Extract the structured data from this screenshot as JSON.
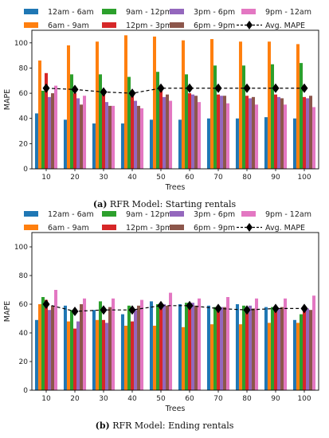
{
  "captions": [
    {
      "tag": "(a)",
      "text": "RFR Model: Starting rentals"
    },
    {
      "tag": "(b)",
      "text": "RFR Model: Ending rentals"
    }
  ],
  "legend_order": [
    "12am - 6am",
    "9am - 12pm",
    "3pm - 6pm",
    "9pm - 12am",
    "6am - 9am",
    "12pm - 3pm",
    "6pm - 9pm",
    "Avg. MAPE"
  ],
  "chart_data": [
    {
      "type": "bar",
      "title": "",
      "xlabel": "Trees",
      "ylabel": "MAPE",
      "categories": [
        "10",
        "20",
        "30",
        "40",
        "50",
        "60",
        "70",
        "80",
        "90",
        "100"
      ],
      "ylim": [
        0,
        110
      ],
      "yticks": [
        0,
        20,
        40,
        60,
        80,
        100
      ],
      "series": [
        {
          "name": "12am - 6am",
          "color": "#1f77b4",
          "values": [
            44,
            39,
            36,
            36,
            39,
            39,
            40,
            40,
            41,
            40
          ]
        },
        {
          "name": "6am - 9am",
          "color": "#ff7f0e",
          "values": [
            86,
            98,
            101,
            106,
            105,
            102,
            103,
            101,
            101,
            99
          ]
        },
        {
          "name": "9am - 12pm",
          "color": "#2ca02c",
          "values": [
            62,
            75,
            75,
            73,
            77,
            75,
            82,
            82,
            83,
            84
          ]
        },
        {
          "name": "12pm - 3pm",
          "color": "#d62728",
          "values": [
            76,
            60,
            62,
            58,
            63,
            60,
            59,
            58,
            59,
            57
          ]
        },
        {
          "name": "3pm - 6pm",
          "color": "#9467bd",
          "values": [
            57,
            56,
            53,
            54,
            57,
            59,
            58,
            56,
            57,
            56
          ]
        },
        {
          "name": "6pm - 9pm",
          "color": "#8c564b",
          "values": [
            60,
            51,
            50,
            50,
            59,
            58,
            58,
            57,
            56,
            58
          ]
        },
        {
          "name": "9pm - 12am",
          "color": "#e377c2",
          "values": [
            66,
            58,
            50,
            48,
            54,
            53,
            52,
            51,
            51,
            49
          ]
        }
      ],
      "line": {
        "name": "Avg. MAPE",
        "color": "#000000",
        "values": [
          64,
          63,
          61,
          60,
          64,
          64,
          64,
          64,
          64,
          64
        ]
      },
      "legend": "top",
      "grid": false
    },
    {
      "type": "bar",
      "title": "",
      "xlabel": "Trees",
      "ylabel": "MAPE",
      "categories": [
        "10",
        "20",
        "30",
        "40",
        "50",
        "60",
        "70",
        "80",
        "90",
        "100"
      ],
      "ylim": [
        0,
        110
      ],
      "yticks": [
        0,
        20,
        40,
        60,
        80,
        100
      ],
      "series": [
        {
          "name": "12am - 6am",
          "color": "#1f77b4",
          "values": [
            49,
            59,
            56,
            53,
            62,
            60,
            59,
            60,
            58,
            49
          ]
        },
        {
          "name": "6am - 9am",
          "color": "#ff7f0e",
          "values": [
            60,
            48,
            49,
            45,
            45,
            44,
            46,
            46,
            47,
            47
          ]
        },
        {
          "name": "9am - 12pm",
          "color": "#2ca02c",
          "values": [
            65,
            56,
            62,
            59,
            60,
            61,
            58,
            59,
            58,
            53
          ]
        },
        {
          "name": "12pm - 3pm",
          "color": "#d62728",
          "values": [
            63,
            43,
            49,
            48,
            58,
            58,
            57,
            55,
            56,
            57
          ]
        },
        {
          "name": "3pm - 6pm",
          "color": "#9467bd",
          "values": [
            56,
            48,
            47,
            56,
            60,
            61,
            58,
            59,
            57,
            57
          ]
        },
        {
          "name": "6pm - 9pm",
          "color": "#8c564b",
          "values": [
            59,
            60,
            58,
            59,
            59,
            59,
            58,
            57,
            58,
            56
          ]
        },
        {
          "name": "9pm - 12am",
          "color": "#e377c2",
          "values": [
            70,
            64,
            64,
            63,
            68,
            64,
            65,
            64,
            64,
            66
          ]
        }
      ],
      "line": {
        "name": "Avg. MAPE",
        "color": "#000000",
        "values": [
          60,
          55,
          56,
          56,
          59,
          59,
          57,
          56,
          57,
          57
        ]
      },
      "legend": "top",
      "grid": false
    }
  ]
}
